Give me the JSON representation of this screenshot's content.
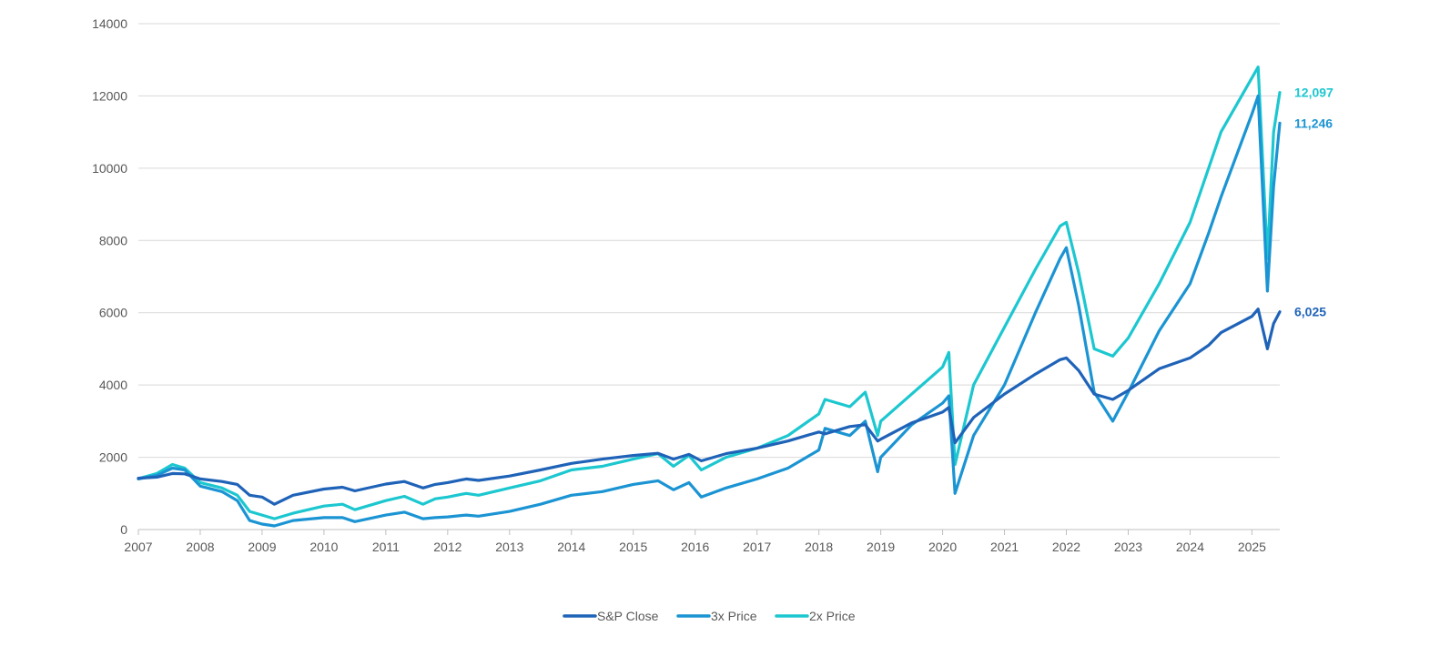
{
  "chart_data": {
    "type": "line",
    "title": "",
    "xlabel": "",
    "ylabel": "",
    "xlim": [
      2007,
      2025.45
    ],
    "ylim": [
      0,
      14000
    ],
    "grid": true,
    "legend_position": "bottom",
    "x_ticks": [
      "2007",
      "2008",
      "2009",
      "2010",
      "2011",
      "2012",
      "2013",
      "2014",
      "2015",
      "2016",
      "2017",
      "2018",
      "2019",
      "2020",
      "2021",
      "2022",
      "2023",
      "2024",
      "2025"
    ],
    "y_ticks": [
      "0",
      "2000",
      "4000",
      "6000",
      "8000",
      "10000",
      "12000",
      "14000"
    ],
    "series": [
      {
        "name": "S&P Close",
        "color": "#1f63b8",
        "end_label": "6,025",
        "x": [
          2007.0,
          2007.3,
          2007.55,
          2007.75,
          2008.0,
          2008.35,
          2008.6,
          2008.8,
          2009.0,
          2009.2,
          2009.5,
          2010.0,
          2010.3,
          2010.5,
          2011.0,
          2011.3,
          2011.6,
          2011.8,
          2012.0,
          2012.3,
          2012.5,
          2013.0,
          2013.5,
          2014.0,
          2014.5,
          2015.0,
          2015.4,
          2015.65,
          2015.9,
          2016.1,
          2016.5,
          2017.0,
          2017.5,
          2018.0,
          2018.1,
          2018.5,
          2018.75,
          2018.95,
          2019.0,
          2019.5,
          2020.0,
          2020.1,
          2020.2,
          2020.5,
          2021.0,
          2021.5,
          2021.9,
          2022.0,
          2022.2,
          2022.45,
          2022.75,
          2023.0,
          2023.5,
          2024.0,
          2024.3,
          2024.5,
          2025.0,
          2025.1,
          2025.25,
          2025.35,
          2025.45
        ],
        "values": [
          1420,
          1450,
          1550,
          1540,
          1400,
          1330,
          1250,
          950,
          900,
          700,
          950,
          1120,
          1170,
          1070,
          1260,
          1330,
          1150,
          1250,
          1300,
          1400,
          1360,
          1480,
          1650,
          1830,
          1950,
          2050,
          2110,
          1950,
          2080,
          1900,
          2100,
          2250,
          2450,
          2700,
          2650,
          2850,
          2900,
          2450,
          2500,
          2950,
          3250,
          3380,
          2400,
          3100,
          3750,
          4300,
          4700,
          4750,
          4400,
          3750,
          3600,
          3850,
          4450,
          4750,
          5100,
          5450,
          5900,
          6100,
          5000,
          5700,
          6025
        ]
      },
      {
        "name": "3x Price",
        "color": "#1b94d3",
        "end_label": "11,246",
        "x": [
          2007.0,
          2007.3,
          2007.55,
          2007.75,
          2008.0,
          2008.35,
          2008.6,
          2008.8,
          2009.0,
          2009.2,
          2009.5,
          2010.0,
          2010.3,
          2010.5,
          2011.0,
          2011.3,
          2011.6,
          2011.8,
          2012.0,
          2012.3,
          2012.5,
          2013.0,
          2013.5,
          2014.0,
          2014.5,
          2015.0,
          2015.4,
          2015.65,
          2015.9,
          2016.1,
          2016.5,
          2017.0,
          2017.5,
          2018.0,
          2018.1,
          2018.5,
          2018.75,
          2018.95,
          2019.0,
          2019.5,
          2020.0,
          2020.1,
          2020.2,
          2020.5,
          2021.0,
          2021.5,
          2021.9,
          2022.0,
          2022.2,
          2022.45,
          2022.75,
          2023.0,
          2023.5,
          2024.0,
          2024.3,
          2024.5,
          2025.0,
          2025.1,
          2025.25,
          2025.35,
          2025.45
        ],
        "values": [
          1400,
          1500,
          1700,
          1650,
          1200,
          1050,
          800,
          250,
          150,
          100,
          250,
          330,
          330,
          220,
          400,
          480,
          300,
          330,
          350,
          400,
          370,
          500,
          700,
          950,
          1050,
          1250,
          1350,
          1100,
          1300,
          900,
          1150,
          1400,
          1700,
          2200,
          2800,
          2600,
          3000,
          1600,
          2000,
          2900,
          3500,
          3700,
          1000,
          2600,
          4000,
          6000,
          7500,
          7800,
          6200,
          3800,
          3000,
          3800,
          5500,
          6800,
          8200,
          9200,
          11500,
          12000,
          6600,
          9500,
          11246
        ]
      },
      {
        "name": "2x Price",
        "color": "#1cc7d0",
        "end_label": "12,097",
        "x": [
          2007.0,
          2007.3,
          2007.55,
          2007.75,
          2008.0,
          2008.35,
          2008.6,
          2008.8,
          2009.0,
          2009.2,
          2009.5,
          2010.0,
          2010.3,
          2010.5,
          2011.0,
          2011.3,
          2011.6,
          2011.8,
          2012.0,
          2012.3,
          2012.5,
          2013.0,
          2013.5,
          2014.0,
          2014.5,
          2015.0,
          2015.4,
          2015.65,
          2015.9,
          2016.1,
          2016.5,
          2017.0,
          2017.5,
          2018.0,
          2018.1,
          2018.5,
          2018.75,
          2018.95,
          2019.0,
          2019.5,
          2020.0,
          2020.1,
          2020.2,
          2020.5,
          2021.0,
          2021.5,
          2021.9,
          2022.0,
          2022.2,
          2022.45,
          2022.75,
          2023.0,
          2023.5,
          2024.0,
          2024.3,
          2024.5,
          2025.0,
          2025.1,
          2025.25,
          2025.35,
          2025.45
        ],
        "values": [
          1410,
          1550,
          1800,
          1700,
          1300,
          1150,
          950,
          500,
          400,
          300,
          450,
          650,
          700,
          550,
          800,
          920,
          700,
          850,
          900,
          1000,
          950,
          1150,
          1350,
          1650,
          1750,
          1950,
          2100,
          1750,
          2050,
          1650,
          2000,
          2250,
          2600,
          3200,
          3600,
          3400,
          3800,
          2600,
          3000,
          3750,
          4500,
          4900,
          1800,
          4000,
          5600,
          7200,
          8400,
          8500,
          7100,
          5000,
          4800,
          5300,
          6800,
          8500,
          10000,
          11000,
          12500,
          12800,
          7500,
          11000,
          12097
        ]
      }
    ]
  }
}
